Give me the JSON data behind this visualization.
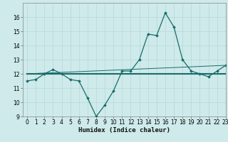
{
  "xlabel": "Humidex (Indice chaleur)",
  "ylabel": "",
  "background_color": "#ceeaea",
  "grid_color": "#b8d8d8",
  "line_color": "#1a6b6b",
  "x_values": [
    0,
    1,
    2,
    3,
    4,
    5,
    6,
    7,
    8,
    9,
    10,
    11,
    12,
    13,
    14,
    15,
    16,
    17,
    18,
    19,
    20,
    21,
    22,
    23
  ],
  "y_main": [
    11.5,
    11.6,
    12.0,
    12.3,
    12.0,
    11.6,
    11.5,
    10.3,
    9.0,
    9.8,
    10.8,
    12.2,
    12.2,
    13.0,
    14.8,
    14.7,
    16.3,
    15.3,
    13.0,
    12.2,
    12.0,
    11.8,
    12.2,
    12.6
  ],
  "y_flat": [
    12.0,
    12.0,
    12.0,
    12.0,
    12.0,
    12.0,
    12.0,
    12.0,
    12.0,
    12.0,
    12.0,
    12.0,
    12.0,
    12.0,
    12.0,
    12.0,
    12.0,
    12.0,
    12.0,
    12.0,
    12.0,
    12.0,
    12.0,
    12.0
  ],
  "y_diag_start": 12.0,
  "y_diag_end": 12.6,
  "ylim": [
    9,
    17
  ],
  "xlim": [
    -0.5,
    23
  ],
  "yticks": [
    9,
    10,
    11,
    12,
    13,
    14,
    15,
    16
  ],
  "xticks": [
    0,
    1,
    2,
    3,
    4,
    5,
    6,
    7,
    8,
    9,
    10,
    11,
    12,
    13,
    14,
    15,
    16,
    17,
    18,
    19,
    20,
    21,
    22,
    23
  ],
  "tick_fontsize": 5.5,
  "xlabel_fontsize": 6.5
}
